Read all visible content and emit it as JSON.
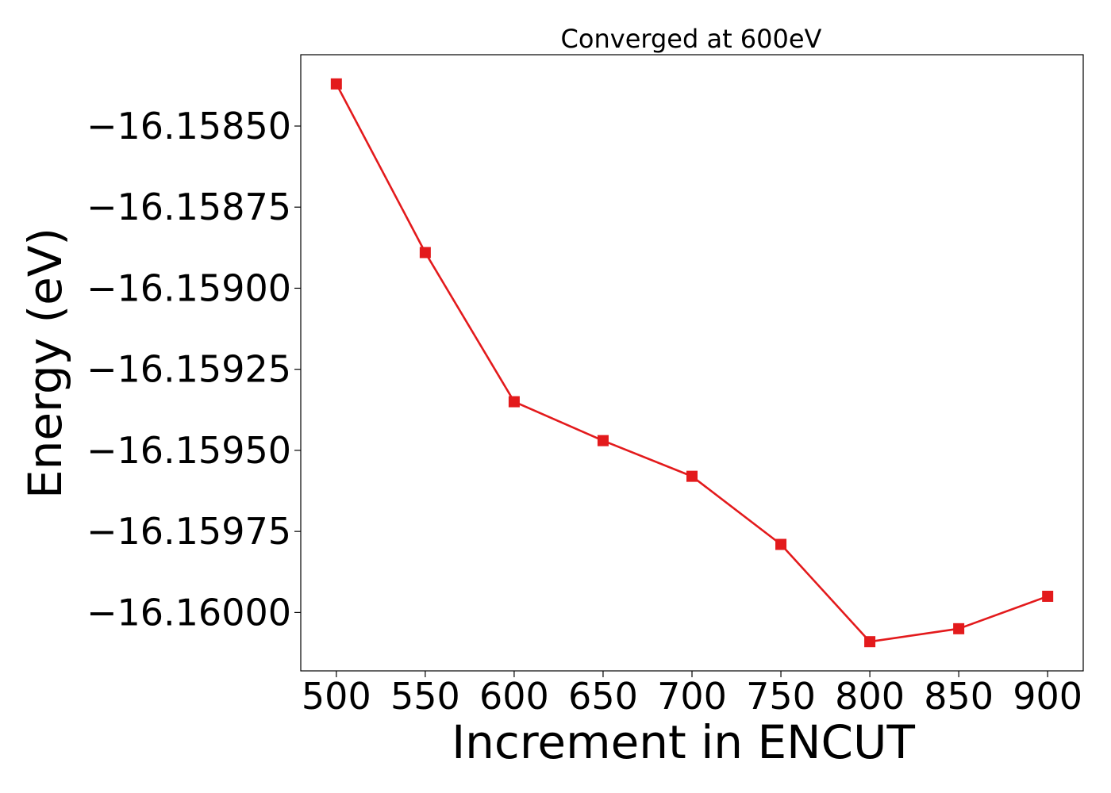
{
  "chart_data": {
    "type": "line",
    "title": "Converged at 600eV",
    "xlabel": "Increment in ENCUT",
    "ylabel": "Energy (eV)",
    "x": [
      500,
      550,
      600,
      650,
      700,
      750,
      800,
      850,
      900
    ],
    "series": [
      {
        "values": [
          -16.15837,
          -16.15889,
          -16.15935,
          -16.15947,
          -16.15958,
          -16.15979,
          -16.16009,
          -16.16005,
          -16.15995
        ],
        "color": "#e31a1c",
        "marker": "square"
      }
    ],
    "xticks": [
      500,
      550,
      600,
      650,
      700,
      750,
      800,
      850,
      900
    ],
    "xtick_labels": [
      "500",
      "550",
      "600",
      "650",
      "700",
      "750",
      "800",
      "850",
      "900"
    ],
    "yticks": [
      -16.1585,
      -16.15875,
      -16.159,
      -16.15925,
      -16.1595,
      -16.15975,
      -16.16
    ],
    "ytick_labels": [
      "−16.15850",
      "−16.15875",
      "−16.15900",
      "−16.15925",
      "−16.15950",
      "−16.15975",
      "−16.16000"
    ],
    "xlim": [
      480,
      920
    ],
    "ylim": [
      -16.16018,
      -16.15828
    ],
    "grid": false,
    "legend": "none"
  }
}
